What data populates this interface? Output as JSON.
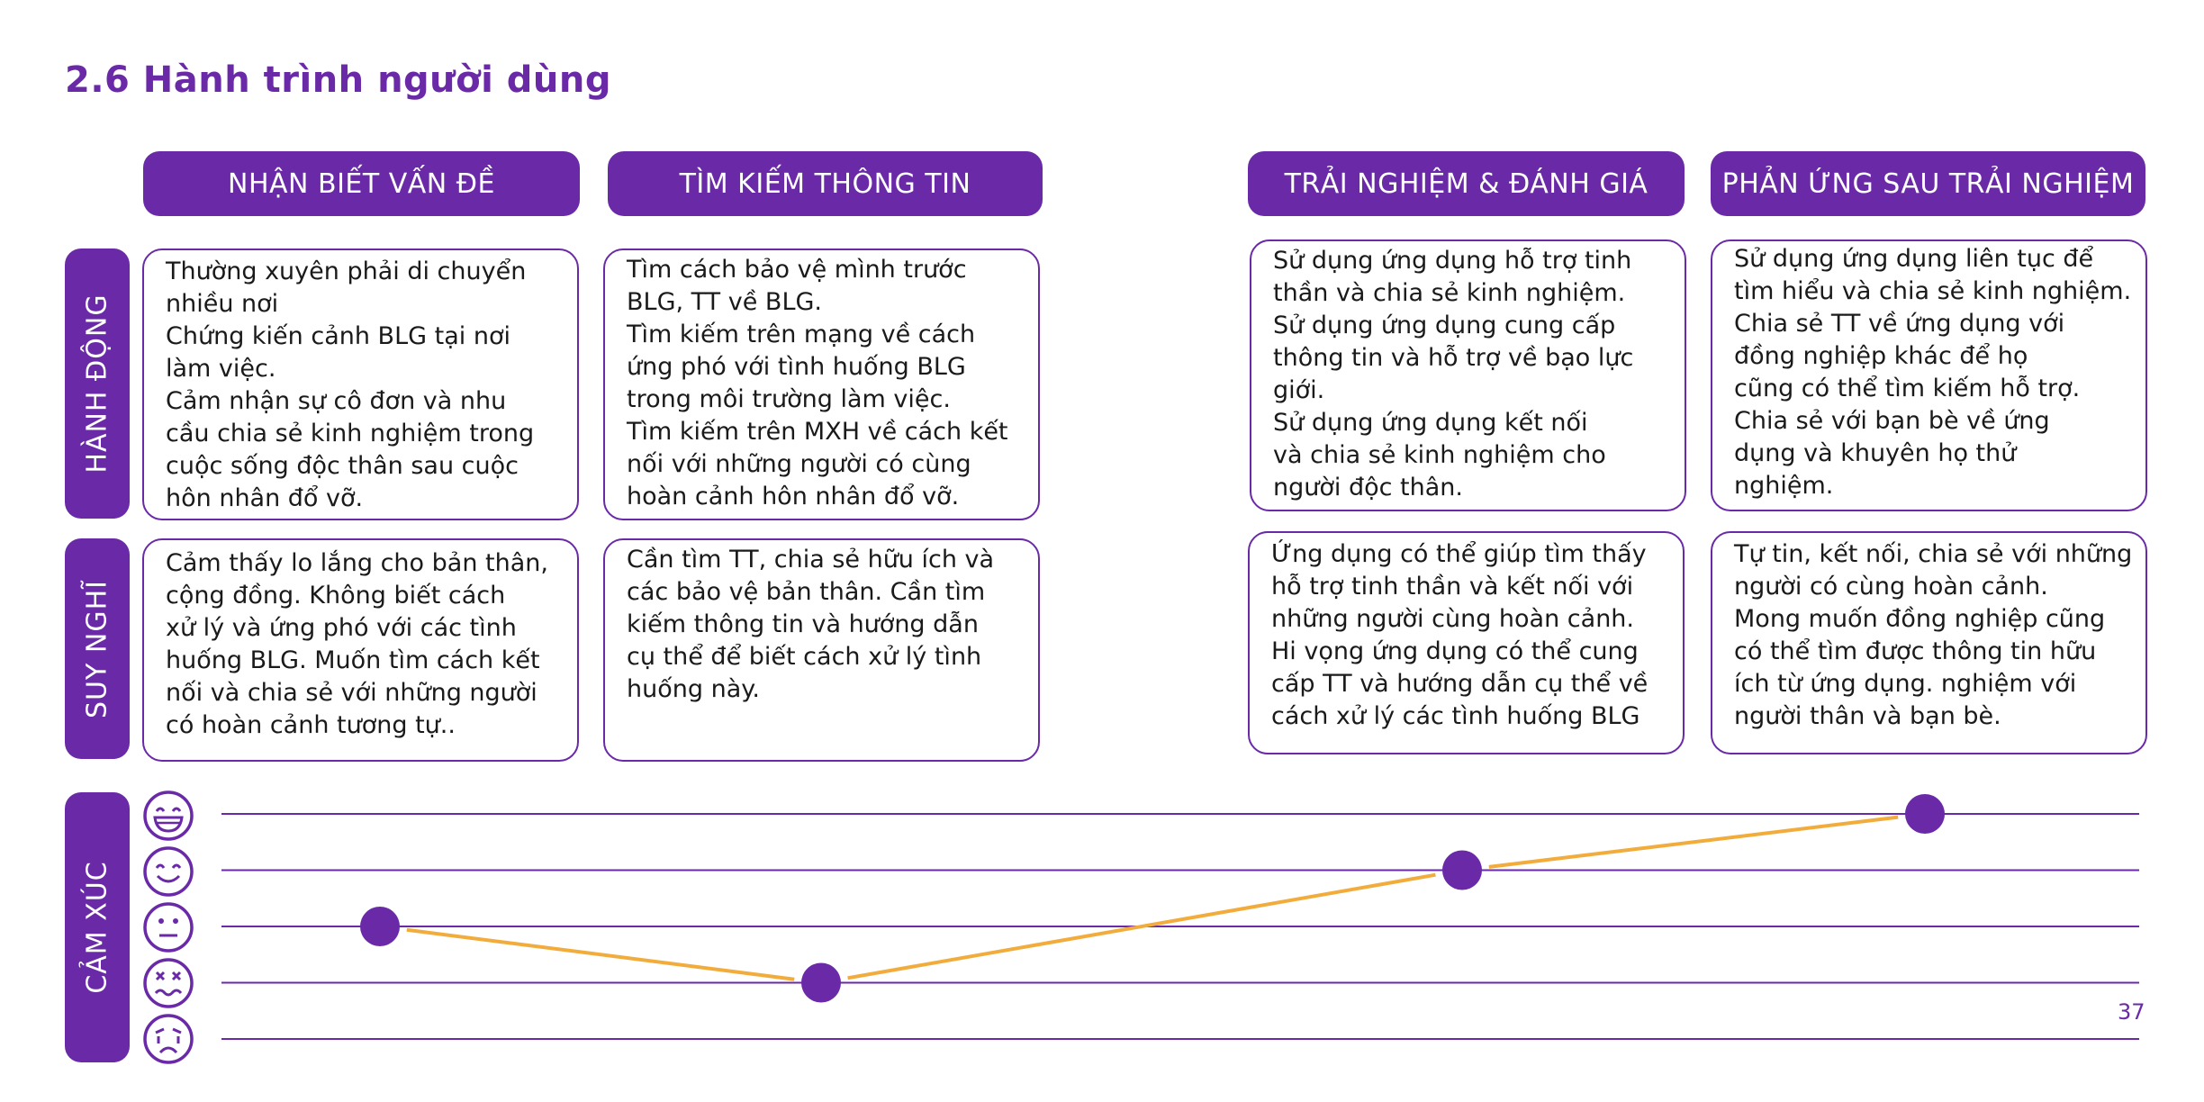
{
  "title": "2.6 Hành trình người dùng",
  "page_number": "37",
  "colors": {
    "accent": "#6a2aa8",
    "emotion_line": "#f2ac3c",
    "text": "#1a1a1a"
  },
  "stages": [
    "NHẬN BIẾT VẤN ĐỀ",
    "TÌM KIẾM THÔNG TIN",
    "TRẢI NGHIỆM & ĐÁNH GIÁ",
    "PHẢN ỨNG SAU TRẢI NGHIỆM"
  ],
  "row_labels": {
    "actions": "HÀNH ĐỘNG",
    "thoughts": "SUY NGHĨ",
    "emotions": "CẢM XÚC"
  },
  "actions": [
    [
      "Thường xuyên phải di chuyển",
      "nhiều nơi",
      "Chứng kiến cảnh BLG tại nơi",
      "làm việc.",
      "Cảm nhận sự cô đơn và nhu",
      "cầu chia sẻ kinh nghiệm trong",
      "cuộc sống độc thân sau cuộc",
      "hôn nhân đổ vỡ."
    ],
    [
      "Tìm cách bảo vệ mình trước",
      "BLG, TT về BLG.",
      "Tìm kiếm trên mạng về cách",
      "ứng phó với tình huống BLG",
      "trong môi trường làm việc.",
      "Tìm kiếm trên MXH về cách kết",
      "nối với những người có cùng",
      "hoàn cảnh hôn nhân đổ vỡ."
    ],
    [
      "Sử dụng ứng dụng hỗ trợ tinh",
      "thần và chia sẻ kinh nghiệm.",
      "Sử dụng ứng dụng cung cấp",
      "thông tin và hỗ trợ về bạo lực",
      "giới.",
      "Sử dụng ứng dụng kết nối",
      "và chia sẻ kinh nghiệm cho",
      "người độc thân."
    ],
    [
      "Sử dụng ứng dụng liên tục để",
      "tìm hiểu và chia sẻ kinh nghiệm.",
      "Chia sẻ TT về ứng dụng với",
      "đồng nghiệp khác để họ",
      "cũng có thể tìm kiếm hỗ trợ.",
      "Chia sẻ với bạn bè về ứng",
      "dụng và khuyên họ thử",
      "nghiệm."
    ]
  ],
  "thoughts": [
    [
      "Cảm thấy lo lắng cho bản thân,",
      "cộng đồng. Không biết cách",
      "xử lý và ứng phó với các tình",
      "huống BLG. Muốn tìm cách kết",
      "nối và chia sẻ với những người",
      "có hoàn cảnh tương tự.."
    ],
    [
      "Cần tìm TT, chia sẻ hữu ích và",
      "các bảo vệ bản thân. Cần tìm",
      "kiếm thông tin và hướng dẫn",
      "cụ thể để biết cách xử lý tình",
      "huống này."
    ],
    [
      "Ứng dụng có thể giúp tìm thấy",
      "hỗ trợ tinh thần và kết nối với",
      "những người cùng hoàn cảnh.",
      "Hi vọng ứng dụng có thể cung",
      "cấp TT và hướng dẫn cụ thể về",
      "cách xử lý các tình huống BLG"
    ],
    [
      "Tự tin, kết nối, chia sẻ với những",
      "người có cùng hoàn cảnh.",
      "Mong muốn đồng nghiệp cũng",
      "có thể tìm được thông tin hữu",
      "ích từ ứng dụng. nghiệm với",
      "người thân và bạn bè."
    ]
  ],
  "emotion_scale_icons": [
    "laughing-face-icon",
    "smiling-face-icon",
    "neutral-face-icon",
    "dizzy-face-icon",
    "crying-face-icon"
  ],
  "chart_data": {
    "type": "line",
    "categories": [
      "NHẬN BIẾT VẤN ĐỀ",
      "TÌM KIẾM THÔNG TIN",
      "TRẢI NGHIỆM & ĐÁNH GIÁ",
      "PHẢN ỨNG SAU TRẢI NGHIỆM"
    ],
    "values": [
      3,
      2,
      4,
      5
    ],
    "ylim": [
      1,
      5
    ],
    "grid": true
  }
}
